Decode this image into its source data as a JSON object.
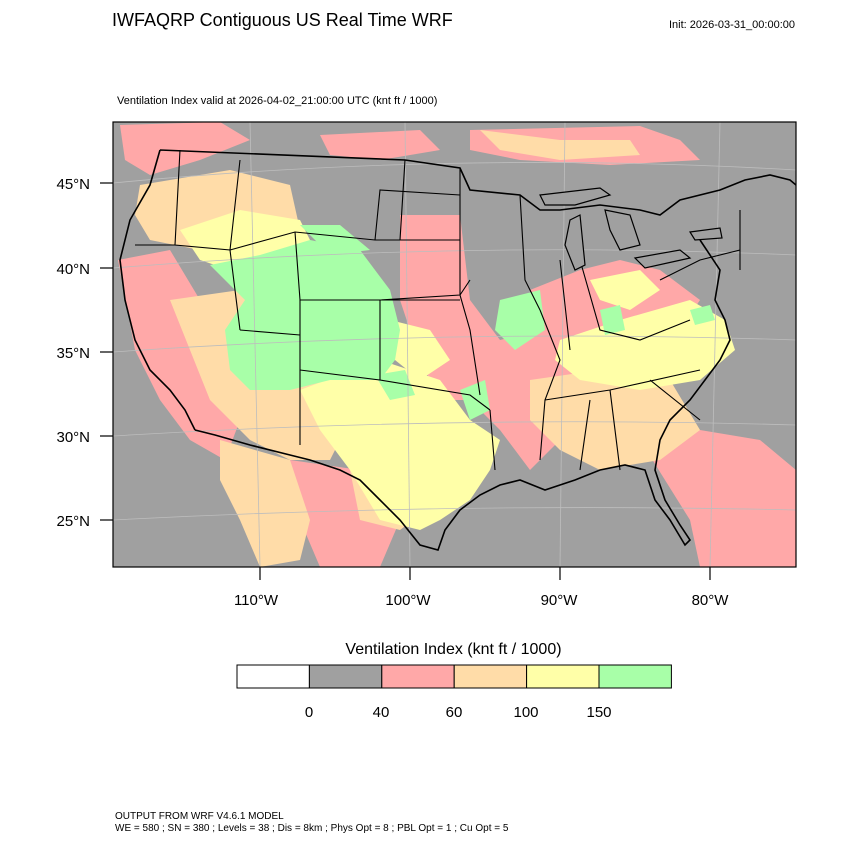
{
  "header": {
    "title": "IWFAQRP Contiguous US Real Time WRF",
    "init": "Init: 2026-03-31_00:00:00",
    "subtitle": "Ventilation Index valid at 2026-04-02_21:00:00 UTC   (knt ft / 1000)"
  },
  "axes": {
    "lat_labels": [
      "45°N",
      "40°N",
      "35°N",
      "30°N",
      "25°N"
    ],
    "lon_labels": [
      "110°W",
      "100°W",
      "90°W",
      "80°W"
    ]
  },
  "legend": {
    "title": "Ventilation Index  (knt ft / 1000)",
    "tick_labels": [
      "0",
      "40",
      "60",
      "100",
      "150"
    ],
    "colors": [
      "#ffffff",
      "#a0a0a0",
      "#ffa8a8",
      "#ffdca8",
      "#ffffa8",
      "#a8ffa8"
    ]
  },
  "footer": {
    "line1": "OUTPUT FROM WRF V4.6.1 MODEL",
    "line2": "WE = 580 ; SN = 380 ; Levels = 38 ; Dis = 8km ; Phys Opt = 8 ; PBL Opt = 1 ; Cu Opt = 5"
  },
  "map": {
    "fill_colors": {
      "gray": "#a0a0a0",
      "pink": "#ffa8a8",
      "orange": "#ffdca8",
      "yellow": "#ffffa8",
      "green": "#a8ffa8"
    }
  }
}
